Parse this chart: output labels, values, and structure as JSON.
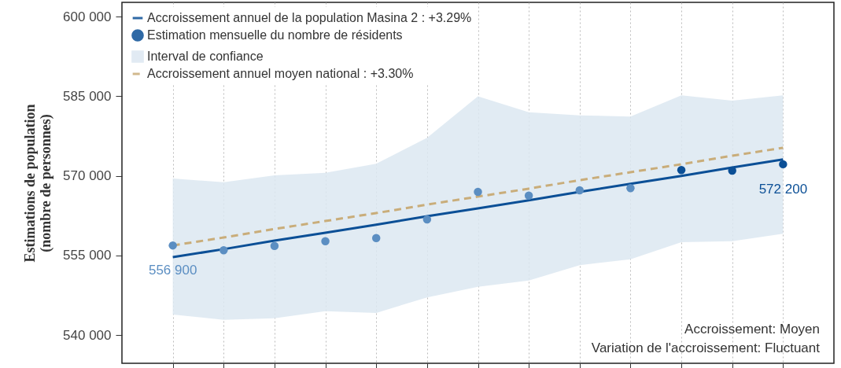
{
  "chart_data": {
    "type": "scatter",
    "ylabel": "Estimations de population\n(nombre de personnes)",
    "categories": [
      null,
      null,
      null,
      null,
      null,
      null,
      null,
      null,
      null,
      null,
      null,
      null,
      null
    ],
    "ylim": [
      534700,
      602700
    ],
    "yticks": [
      {
        "value": 540000,
        "label": "540 000"
      },
      {
        "value": 555000,
        "label": "555 000"
      },
      {
        "value": 570000,
        "label": "570 000"
      },
      {
        "value": 585000,
        "label": "585 000"
      },
      {
        "value": 600000,
        "label": "600 000"
      }
    ],
    "series": [
      {
        "name": "Accroissement annuel de la population Masina 2 : +3.29%",
        "type": "line",
        "color": "#0b4f96",
        "line_style": "solid",
        "values": [
          554700,
          556200,
          557800,
          559300,
          560800,
          562400,
          563900,
          565400,
          567000,
          568500,
          570000,
          571600,
          573100
        ]
      },
      {
        "name": "Estimation mensuelle du nombre de résidents",
        "type": "scatter",
        "color": "#0b4f96",
        "marker": "circle",
        "colors": [
          "#5b8ec2",
          "#5b8ec2",
          "#5b8ec2",
          "#5b8ec2",
          "#5b8ec2",
          "#5b8ec2",
          "#5b8ec2",
          "#5b8ec2",
          "#5b8ec2",
          "#5b8ec2",
          "#0b4f96",
          "#0b4f96",
          "#0b4f96"
        ],
        "values": [
          556900,
          556000,
          556800,
          557700,
          558300,
          561800,
          567000,
          566300,
          567300,
          567700,
          571100,
          571000,
          572200
        ],
        "value_labels": [
          "556 900",
          null,
          null,
          null,
          null,
          null,
          null,
          null,
          null,
          null,
          null,
          null,
          "572 200"
        ]
      },
      {
        "name": "Interval de confiance",
        "type": "area",
        "color": "#dce7f1",
        "values": [
          null,
          null,
          null,
          null,
          null,
          null,
          null,
          null,
          null,
          null,
          null,
          null,
          null
        ],
        "lower": [
          543900,
          542900,
          543200,
          544500,
          544200,
          547100,
          549100,
          550300,
          553200,
          554300,
          557500,
          557700,
          559100
        ],
        "upper": [
          569500,
          568800,
          570100,
          570600,
          572300,
          577200,
          585000,
          582000,
          581400,
          581200,
          585200,
          584200,
          585200
        ]
      },
      {
        "name": "Accroissement annuel moyen national : +3.30%",
        "type": "line",
        "color": "#c9ad7a",
        "line_style": "dashed",
        "values": [
          556900,
          558400,
          560000,
          561500,
          563000,
          564600,
          566100,
          567600,
          569200,
          570700,
          572200,
          573800,
          575300
        ]
      }
    ],
    "grid": "x",
    "legend": "top left",
    "annotations": [
      "Accroissement: Moyen",
      "Variation de l'accroissement: Fluctuant"
    ]
  }
}
